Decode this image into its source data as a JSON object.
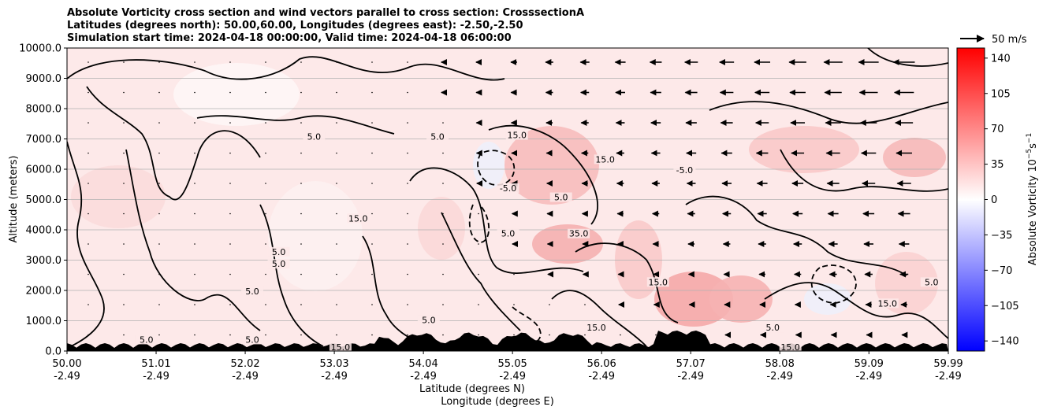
{
  "title": {
    "line1": "Absolute Vorticity cross section and wind vectors parallel to cross section: CrosssectionA",
    "line2": "Latitudes (degrees north): 50.00,60.00, Longitudes (degrees east): -2.50,-2.50",
    "line3": "Simulation start time: 2024-04-18 00:00:00, Valid time: 2024-04-18 06:00:00"
  },
  "quiver_key": {
    "label": "50 m/s"
  },
  "chart_data": {
    "type": "heatmap",
    "ylabel": "Altitude (meters)",
    "xlabel_line1": "Latitude (degrees N)",
    "xlabel_line2": "Longitude (degrees E)",
    "ylim": [
      0,
      10000
    ],
    "y_ticks": [
      "0.0",
      "1000.0",
      "2000.0",
      "3000.0",
      "4000.0",
      "5000.0",
      "6000.0",
      "7000.0",
      "8000.0",
      "9000.0",
      "10000.0"
    ],
    "x_ticks": [
      {
        "lat": "50.00",
        "lon": "-2.49"
      },
      {
        "lat": "51.01",
        "lon": "-2.49"
      },
      {
        "lat": "52.02",
        "lon": "-2.49"
      },
      {
        "lat": "53.03",
        "lon": "-2.49"
      },
      {
        "lat": "54.04",
        "lon": "-2.49"
      },
      {
        "lat": "55.05",
        "lon": "-2.49"
      },
      {
        "lat": "56.06",
        "lon": "-2.49"
      },
      {
        "lat": "57.07",
        "lon": "-2.49"
      },
      {
        "lat": "58.08",
        "lon": "-2.49"
      },
      {
        "lat": "59.09",
        "lon": "-2.49"
      },
      {
        "lat": "59.99",
        "lon": "-2.49"
      }
    ],
    "grid_horizontal": true,
    "colorbar": {
      "label": "Absolute Vorticity 10",
      "label_exp1": "−5",
      "label_mid": "s",
      "label_exp2": "−1",
      "range": [
        -150,
        150
      ],
      "ticks": [
        "140",
        "105",
        "70",
        "35",
        "0",
        "−35",
        "−70",
        "−105",
        "−140"
      ],
      "tick_values": [
        140,
        105,
        70,
        35,
        0,
        -35,
        -70,
        -105,
        -140
      ],
      "colors": [
        "#0000ff",
        "#ffffff",
        "#ff0000"
      ]
    },
    "contour_labels": [
      {
        "text": "5.0",
        "lat": 54.2,
        "alt": 7000
      },
      {
        "text": "5.0",
        "lat": 52.8,
        "alt": 7000
      },
      {
        "text": "15.0",
        "lat": 55.1,
        "alt": 7050
      },
      {
        "text": "15.0",
        "lat": 56.1,
        "alt": 6250
      },
      {
        "text": "-5.0",
        "lat": 57.0,
        "alt": 5900
      },
      {
        "text": "-5.0",
        "lat": 55.0,
        "alt": 5300
      },
      {
        "text": "5.0",
        "lat": 55.6,
        "alt": 5000
      },
      {
        "text": "5.0",
        "lat": 55.0,
        "alt": 3800
      },
      {
        "text": "35.0",
        "lat": 55.8,
        "alt": 3800
      },
      {
        "text": "15.0",
        "lat": 53.3,
        "alt": 4300
      },
      {
        "text": "5.0",
        "lat": 52.4,
        "alt": 3200
      },
      {
        "text": "5.0",
        "lat": 52.4,
        "alt": 2800
      },
      {
        "text": "5.0",
        "lat": 52.1,
        "alt": 1900
      },
      {
        "text": "15.0",
        "lat": 56.7,
        "alt": 2200
      },
      {
        "text": "5.0",
        "lat": 59.8,
        "alt": 2200
      },
      {
        "text": "15.0",
        "lat": 56.0,
        "alt": 700
      },
      {
        "text": "5.0",
        "lat": 58.0,
        "alt": 700
      },
      {
        "text": "15.0",
        "lat": 58.2,
        "alt": 50
      },
      {
        "text": "5.0",
        "lat": 54.1,
        "alt": 950
      },
      {
        "text": "15.0",
        "lat": 59.3,
        "alt": 1500
      },
      {
        "text": "5.0",
        "lat": 52.1,
        "alt": 300
      },
      {
        "text": "5.0",
        "lat": 50.9,
        "alt": 300
      },
      {
        "text": "15.0",
        "lat": 53.1,
        "alt": 50
      }
    ]
  }
}
